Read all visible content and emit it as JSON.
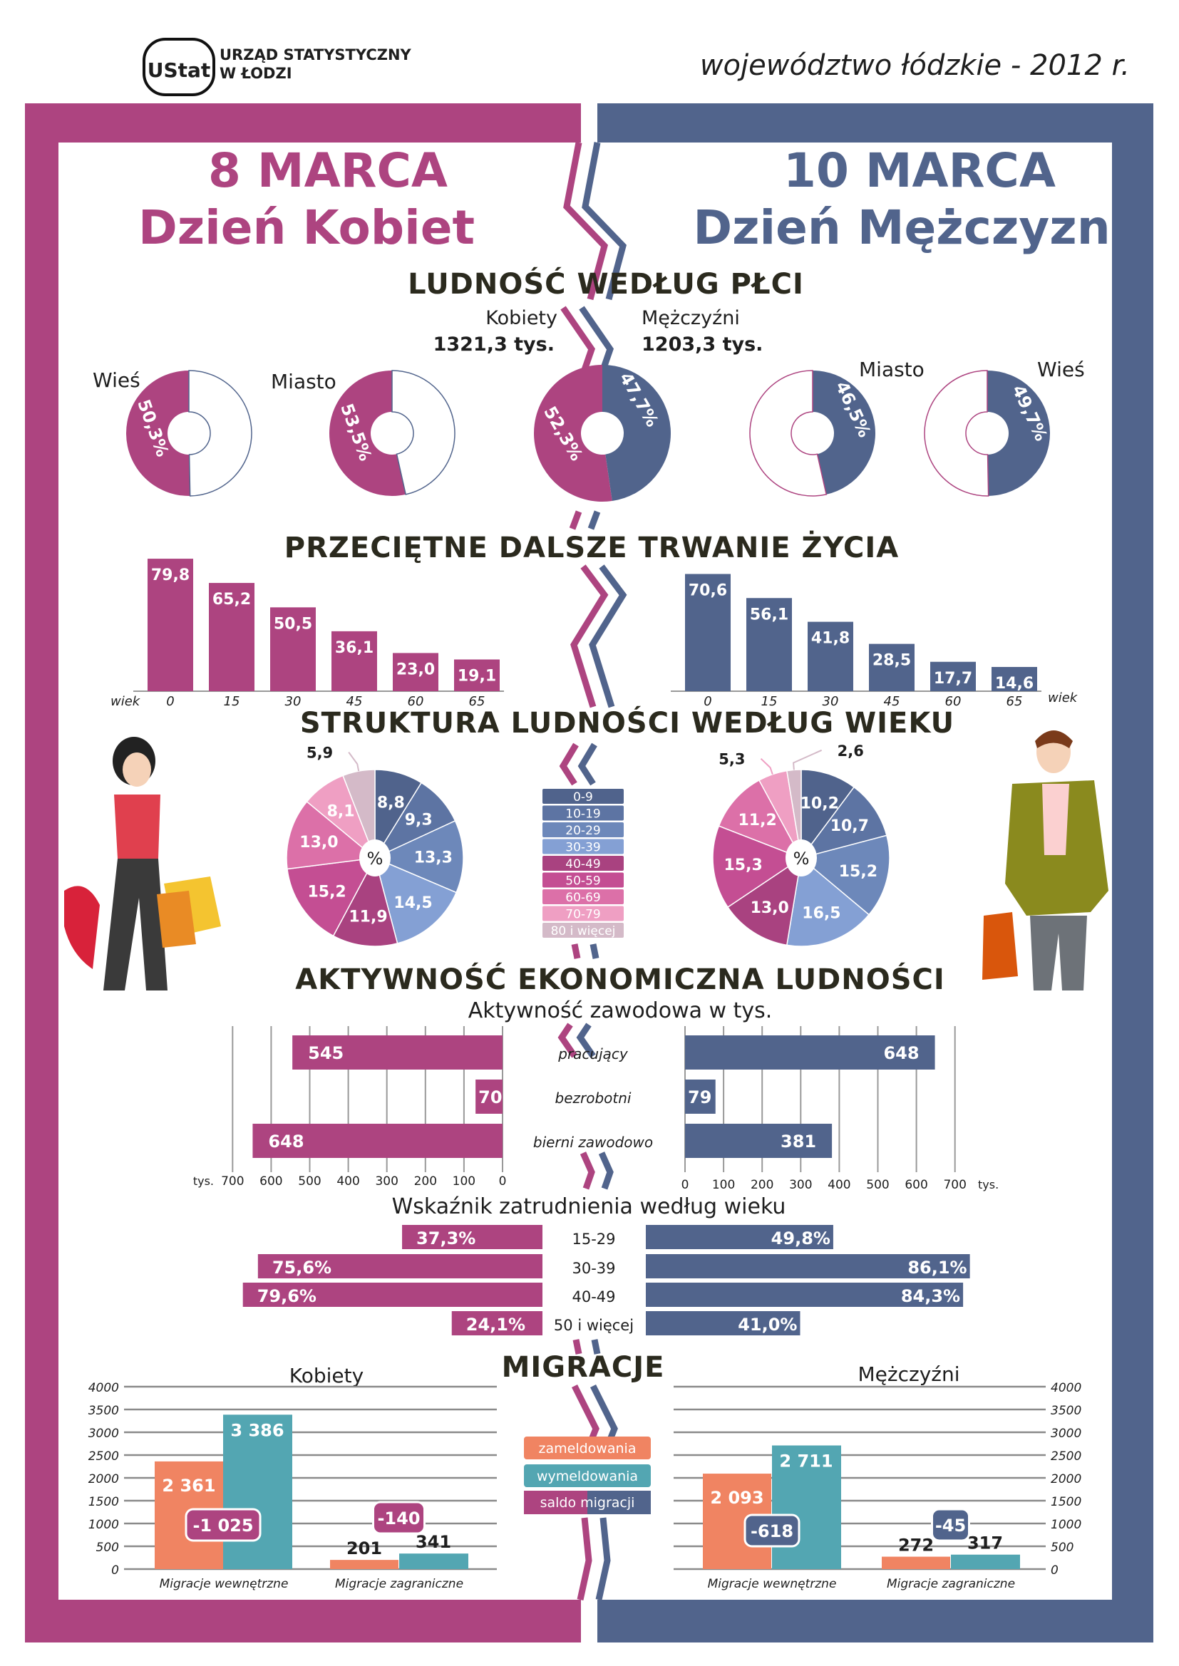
{
  "header": {
    "logo_text": "UStat",
    "org_line1": "URZĄD STATYSTYCZNY",
    "org_line2": "W ŁODZI",
    "region": "województwo łódzkie - 2012 r."
  },
  "titles": {
    "women_date": "8 MARCA",
    "women_day": "Dzień Kobiet",
    "men_date": "10 MARCA",
    "men_day": "Dzień Mężczyzn"
  },
  "colors": {
    "women": "#ad4480",
    "men": "#51648c",
    "registrations": "#f08462",
    "deregistrations": "#53a6b2",
    "grid": "#8a8a8a"
  },
  "population": {
    "title": "LUDNOŚĆ WEDŁUG PŁCI",
    "women_label": "Kobiety",
    "women_value": "1321,3 tys.",
    "men_label": "Mężczyźni",
    "men_value": "1203,3 tys.",
    "donuts": [
      {
        "label": "Wieś",
        "group": "women",
        "pct": 50.3,
        "text": "50,3%"
      },
      {
        "label": "Miasto",
        "group": "women",
        "pct": 53.5,
        "text": "53,5%"
      },
      {
        "label": "",
        "group": "total",
        "women_pct": 52.3,
        "women_text": "52,3%",
        "men_pct": 47.7,
        "men_text": "47,7%"
      },
      {
        "label": "Miasto",
        "group": "men",
        "pct": 46.5,
        "text": "46,5%"
      },
      {
        "label": "Wieś",
        "group": "men",
        "pct": 49.7,
        "text": "49,7%"
      }
    ]
  },
  "life_expectancy": {
    "title": "PRZECIĘTNE DALSZE TRWANIE ŻYCIA",
    "axis_label": "wiek",
    "ages": [
      "0",
      "15",
      "30",
      "45",
      "60",
      "65"
    ],
    "women": [
      79.8,
      65.2,
      50.5,
      36.1,
      23.0,
      19.1
    ],
    "women_labels": [
      "79,8",
      "65,2",
      "50,5",
      "36,1",
      "23,0",
      "19,1"
    ],
    "men": [
      70.6,
      56.1,
      41.8,
      28.5,
      17.7,
      14.6
    ],
    "men_labels": [
      "70,6",
      "56,1",
      "41,8",
      "28,5",
      "17,7",
      "14,6"
    ]
  },
  "age_structure": {
    "title": "STRUKTURA LUDNOŚCI WEDŁUG WIEKU",
    "center_label": "%",
    "groups": [
      "0-9",
      "10-19",
      "20-29",
      "30-39",
      "40-49",
      "50-59",
      "60-69",
      "70-79",
      "80 i więcej"
    ],
    "group_colors": [
      "#50638c",
      "#5d74a3",
      "#6d88ba",
      "#84a0d4",
      "#a94280",
      "#c44e93",
      "#dc70a8",
      "#ef9fc3",
      "#d4bac8"
    ],
    "women": [
      8.8,
      9.3,
      13.3,
      14.5,
      11.9,
      15.2,
      13.0,
      8.1,
      5.9
    ],
    "women_labels": [
      "8,8",
      "9,3",
      "13,3",
      "14,5",
      "11,9",
      "15,2",
      "13,0",
      "8,1",
      "5,9"
    ],
    "men": [
      10.2,
      10.7,
      15.2,
      16.5,
      13.0,
      15.3,
      11.2,
      5.3,
      2.6
    ],
    "men_labels": [
      "10,2",
      "10,7",
      "15,2",
      "16,5",
      "13,0",
      "15,3",
      "11,2",
      "5,3",
      "2,6"
    ]
  },
  "economic_activity": {
    "title": "AKTYWNOŚĆ EKONOMICZNA LUDNOŚCI",
    "subtitle": "Aktywność zawodowa w tys.",
    "categories": [
      "pracujący",
      "bezrobotni",
      "bierni zawodowo"
    ],
    "women": [
      545,
      70,
      648
    ],
    "men": [
      648,
      79,
      381
    ],
    "ticks": [
      "0",
      "100",
      "200",
      "300",
      "400",
      "500",
      "600",
      "700"
    ],
    "unit": "tys.",
    "employment_title": "Wskaźnik zatrudnienia według wieku",
    "employment_ages": [
      "15-29",
      "30-39",
      "40-49",
      "50 i więcej"
    ],
    "employment_women": [
      37.3,
      75.6,
      79.6,
      24.1
    ],
    "employment_women_labels": [
      "37,3%",
      "75,6%",
      "79,6%",
      "24,1%"
    ],
    "employment_men": [
      49.8,
      86.1,
      84.3,
      41.0
    ],
    "employment_men_labels": [
      "49,8%",
      "86,1%",
      "84,3%",
      "41,0%"
    ]
  },
  "migration": {
    "title": "MIGRACJE",
    "legend": [
      "zameldowania",
      "wymeldowania",
      "saldo migracji"
    ],
    "y_ticks": [
      "0",
      "500",
      "1000",
      "1500",
      "2000",
      "2500",
      "3000",
      "3500",
      "4000"
    ],
    "categories": [
      "Migracje wewnętrzne",
      "Migracje zagraniczne"
    ],
    "women": {
      "title": "Kobiety",
      "registrations": [
        2361,
        201
      ],
      "registrations_labels": [
        "2 361",
        "201"
      ],
      "deregistrations": [
        3386,
        341
      ],
      "deregistrations_labels": [
        "3 386",
        "341"
      ],
      "balance_labels": [
        "-1 025",
        "-140"
      ]
    },
    "men": {
      "title": "Mężczyźni",
      "registrations": [
        2093,
        272
      ],
      "registrations_labels": [
        "2 093",
        "272"
      ],
      "deregistrations": [
        2711,
        317
      ],
      "deregistrations_labels": [
        "2 711",
        "317"
      ],
      "balance_labels": [
        "-618",
        "-45"
      ]
    }
  }
}
